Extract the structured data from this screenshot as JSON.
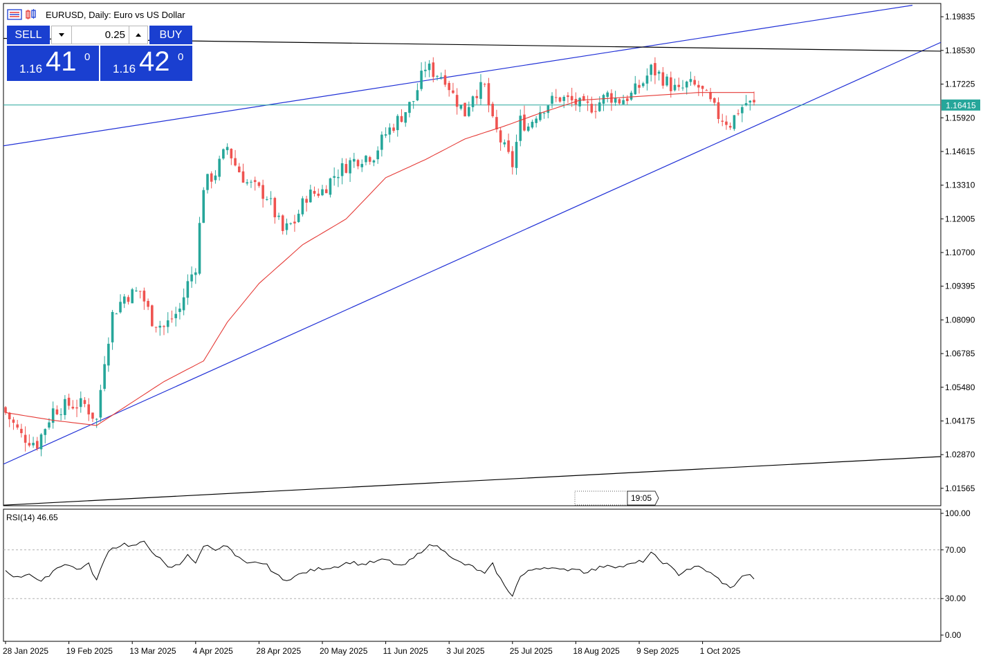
{
  "header": {
    "title": "EURUSD, Daily:  Euro vs US Dollar"
  },
  "trade_panel": {
    "sell_label": "SELL",
    "buy_label": "BUY",
    "lot_value": "0.25",
    "sell_price_small": "1.16",
    "sell_price_big": "41",
    "sell_price_sup": "0",
    "buy_price_small": "1.16",
    "buy_price_big": "42",
    "buy_price_sup": "0"
  },
  "current_price_label": "1.16415",
  "time_marker_label": "19:05",
  "rsi_label": "RSI(14) 46.65",
  "colors": {
    "bull": "#26a69a",
    "bear": "#ef5350",
    "ma": "#e53935",
    "trend_blue": "#1f2fd6",
    "trend_black": "#000000",
    "price_line": "#26a69a",
    "button_blue": "#1a3fd0"
  },
  "chart_data": [
    {
      "type": "candlestick",
      "symbol": "EURUSD",
      "timeframe": "Daily",
      "y_ticks": [
        "1.19835",
        "1.18530",
        "1.17225",
        "1.15920",
        "1.14615",
        "1.13310",
        "1.12005",
        "1.10700",
        "1.09395",
        "1.08090",
        "1.06785",
        "1.05480",
        "1.04175",
        "1.02870",
        "1.01565"
      ],
      "ylim": [
        1.0089,
        1.2035
      ],
      "x_labels": [
        "28 Jan 2025",
        "19 Feb 2025",
        "13 Mar 2025",
        "4 Apr 2025",
        "28 Apr 2025",
        "20 May 2025",
        "11 Jun 2025",
        "3 Jul 2025",
        "25 Jul 2025",
        "18 Aug 2025",
        "9 Sep 2025",
        "1 Oct 2025"
      ],
      "x_label_bars": [
        0,
        16,
        32,
        48,
        64,
        80,
        96,
        112,
        128,
        144,
        160,
        176
      ],
      "current_price": 1.16415,
      "close_anchors": [
        [
          0,
          1.045
        ],
        [
          4,
          1.036
        ],
        [
          8,
          1.033
        ],
        [
          12,
          1.046
        ],
        [
          16,
          1.048
        ],
        [
          20,
          1.048
        ],
        [
          23,
          1.042
        ],
        [
          25,
          1.066
        ],
        [
          27,
          1.083
        ],
        [
          30,
          1.09
        ],
        [
          34,
          1.092
        ],
        [
          37,
          1.081
        ],
        [
          40,
          1.078
        ],
        [
          44,
          1.085
        ],
        [
          46,
          1.095
        ],
        [
          48,
          1.102
        ],
        [
          50,
          1.133
        ],
        [
          53,
          1.138
        ],
        [
          56,
          1.148
        ],
        [
          58,
          1.141
        ],
        [
          61,
          1.134
        ],
        [
          64,
          1.131
        ],
        [
          66,
          1.129
        ],
        [
          70,
          1.115
        ],
        [
          73,
          1.119
        ],
        [
          76,
          1.129
        ],
        [
          80,
          1.131
        ],
        [
          83,
          1.137
        ],
        [
          87,
          1.142
        ],
        [
          90,
          1.144
        ],
        [
          93,
          1.145
        ],
        [
          96,
          1.153
        ],
        [
          100,
          1.16
        ],
        [
          103,
          1.166
        ],
        [
          106,
          1.179
        ],
        [
          108,
          1.177
        ],
        [
          111,
          1.175
        ],
        [
          113,
          1.168
        ],
        [
          116,
          1.161
        ],
        [
          118,
          1.169
        ],
        [
          121,
          1.171
        ],
        [
          123,
          1.157
        ],
        [
          126,
          1.147
        ],
        [
          128,
          1.141
        ],
        [
          130,
          1.158
        ],
        [
          132,
          1.156
        ],
        [
          134,
          1.161
        ],
        [
          137,
          1.165
        ],
        [
          140,
          1.167
        ],
        [
          144,
          1.165
        ],
        [
          146,
          1.163
        ],
        [
          149,
          1.164
        ],
        [
          152,
          1.168
        ],
        [
          155,
          1.166
        ],
        [
          158,
          1.168
        ],
        [
          161,
          1.173
        ],
        [
          163,
          1.178
        ],
        [
          165,
          1.176
        ],
        [
          167,
          1.173
        ],
        [
          170,
          1.169
        ],
        [
          172,
          1.172
        ],
        [
          175,
          1.171
        ],
        [
          177,
          1.167
        ],
        [
          180,
          1.16
        ],
        [
          183,
          1.157
        ],
        [
          185,
          1.162
        ],
        [
          187,
          1.165
        ],
        [
          189,
          1.1641
        ]
      ],
      "moving_average": {
        "period": 50,
        "points": [
          [
            0,
            1.045
          ],
          [
            12,
            1.042
          ],
          [
            23,
            1.04
          ],
          [
            30,
            1.047
          ],
          [
            40,
            1.057
          ],
          [
            50,
            1.065
          ],
          [
            56,
            1.08
          ],
          [
            64,
            1.095
          ],
          [
            75,
            1.11
          ],
          [
            86,
            1.12
          ],
          [
            96,
            1.136
          ],
          [
            106,
            1.143
          ],
          [
            116,
            1.151
          ],
          [
            126,
            1.156
          ],
          [
            135,
            1.161
          ],
          [
            145,
            1.166
          ],
          [
            155,
            1.167
          ],
          [
            165,
            1.168
          ],
          [
            175,
            1.169
          ],
          [
            185,
            1.169
          ],
          [
            189,
            1.169
          ]
        ]
      },
      "trendlines": [
        {
          "color": "blue",
          "from": [
            -2,
            1.148
          ],
          "to": [
            229,
            1.2028
          ]
        },
        {
          "color": "blue",
          "from": [
            -2,
            1.024
          ],
          "to": [
            237,
            1.189
          ]
        },
        {
          "color": "black",
          "from": [
            -2,
            1.19
          ],
          "to": [
            237,
            1.185
          ]
        },
        {
          "color": "black",
          "from": [
            -2,
            1.009
          ],
          "to": [
            237,
            1.028
          ]
        }
      ]
    },
    {
      "type": "line",
      "name": "RSI(14)",
      "value": 46.65,
      "y_ticks": [
        "100.00",
        "70.00",
        "30.00",
        "0.00"
      ],
      "ylim": [
        0,
        100
      ],
      "levels": [
        70,
        30
      ],
      "anchors": [
        [
          0,
          53
        ],
        [
          3,
          47
        ],
        [
          6,
          51
        ],
        [
          9,
          43
        ],
        [
          12,
          53
        ],
        [
          15,
          59
        ],
        [
          18,
          54
        ],
        [
          21,
          58
        ],
        [
          23,
          45
        ],
        [
          26,
          70
        ],
        [
          30,
          75
        ],
        [
          32,
          73
        ],
        [
          35,
          76
        ],
        [
          38,
          66
        ],
        [
          41,
          55
        ],
        [
          44,
          58
        ],
        [
          46,
          67
        ],
        [
          48,
          58
        ],
        [
          50,
          74
        ],
        [
          53,
          71
        ],
        [
          56,
          73
        ],
        [
          58,
          65
        ],
        [
          61,
          58
        ],
        [
          64,
          60
        ],
        [
          66,
          57
        ],
        [
          70,
          45
        ],
        [
          73,
          48
        ],
        [
          76,
          52
        ],
        [
          80,
          55
        ],
        [
          83,
          56
        ],
        [
          87,
          60
        ],
        [
          90,
          58
        ],
        [
          93,
          60
        ],
        [
          96,
          62
        ],
        [
          100,
          56
        ],
        [
          103,
          63
        ],
        [
          106,
          72
        ],
        [
          108,
          74
        ],
        [
          111,
          70
        ],
        [
          113,
          62
        ],
        [
          116,
          58
        ],
        [
          118,
          56
        ],
        [
          121,
          50
        ],
        [
          123,
          58
        ],
        [
          126,
          40
        ],
        [
          128,
          33
        ],
        [
          130,
          48
        ],
        [
          132,
          52
        ],
        [
          134,
          55
        ],
        [
          137,
          56
        ],
        [
          140,
          53
        ],
        [
          144,
          55
        ],
        [
          146,
          52
        ],
        [
          149,
          54
        ],
        [
          152,
          58
        ],
        [
          155,
          56
        ],
        [
          158,
          58
        ],
        [
          161,
          61
        ],
        [
          163,
          67
        ],
        [
          165,
          62
        ],
        [
          167,
          58
        ],
        [
          170,
          50
        ],
        [
          172,
          54
        ],
        [
          175,
          56
        ],
        [
          177,
          53
        ],
        [
          180,
          46
        ],
        [
          182,
          41
        ],
        [
          183,
          38
        ],
        [
          185,
          45
        ],
        [
          187,
          50
        ],
        [
          189,
          47
        ]
      ]
    }
  ]
}
